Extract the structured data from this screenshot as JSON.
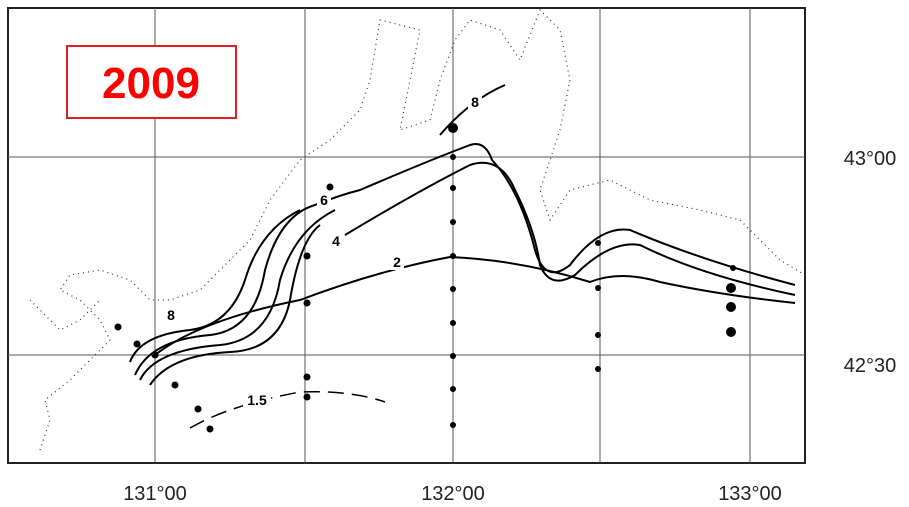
{
  "title": "2009",
  "longitude_labels": [
    "131°00",
    "132°00",
    "133°00"
  ],
  "latitude_labels": [
    "43°00",
    "42°30"
  ],
  "contour_labels": [
    "8",
    "6",
    "4",
    "2",
    "1.5",
    "8"
  ]
}
